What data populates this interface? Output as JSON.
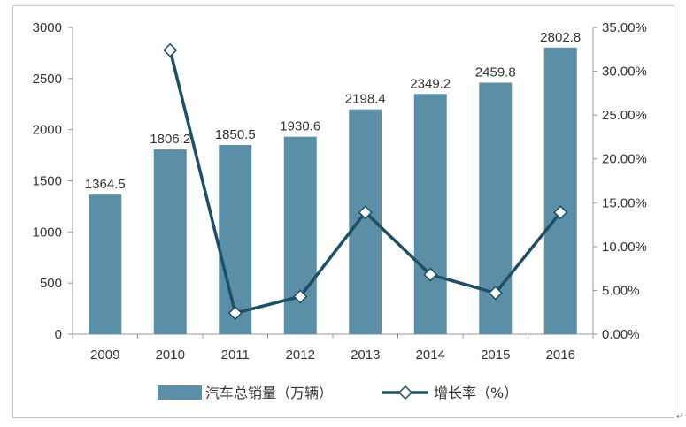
{
  "chart_data": {
    "type": "bar",
    "categories": [
      "2009",
      "2010",
      "2011",
      "2012",
      "2013",
      "2014",
      "2015",
      "2016"
    ],
    "series": [
      {
        "name": "汽车总销量（万辆）",
        "type": "bar",
        "axis": "left",
        "color": "#5b8fa8",
        "values": [
          1364.5,
          1806.2,
          1850.5,
          1930.6,
          2198.4,
          2349.2,
          2459.8,
          2802.8
        ],
        "labels": [
          "1364.5",
          "1806.2",
          "1850.5",
          "1930.6",
          "2198.4",
          "2349.2",
          "2459.8",
          "2802.8"
        ]
      },
      {
        "name": "增长率（%）",
        "type": "line",
        "axis": "right",
        "color": "#1f4f63",
        "marker": "diamond",
        "values": [
          null,
          32.4,
          2.4,
          4.3,
          13.9,
          6.8,
          4.7,
          13.9
        ]
      }
    ],
    "y_left": {
      "min": 0,
      "max": 3000,
      "ticks": [
        0,
        500,
        1000,
        1500,
        2000,
        2500,
        3000
      ],
      "tick_labels": [
        "0",
        "500",
        "1000",
        "1500",
        "2000",
        "2500",
        "3000"
      ]
    },
    "y_right": {
      "min": 0,
      "max": 35,
      "ticks": [
        0,
        5,
        10,
        15,
        20,
        25,
        30,
        35
      ],
      "tick_labels": [
        "0.00%",
        "5.00%",
        "10.00%",
        "15.00%",
        "20.00%",
        "25.00%",
        "30.00%",
        "35.00%"
      ]
    },
    "grid": false,
    "legend": "bottom"
  },
  "corner_mark": "↵"
}
